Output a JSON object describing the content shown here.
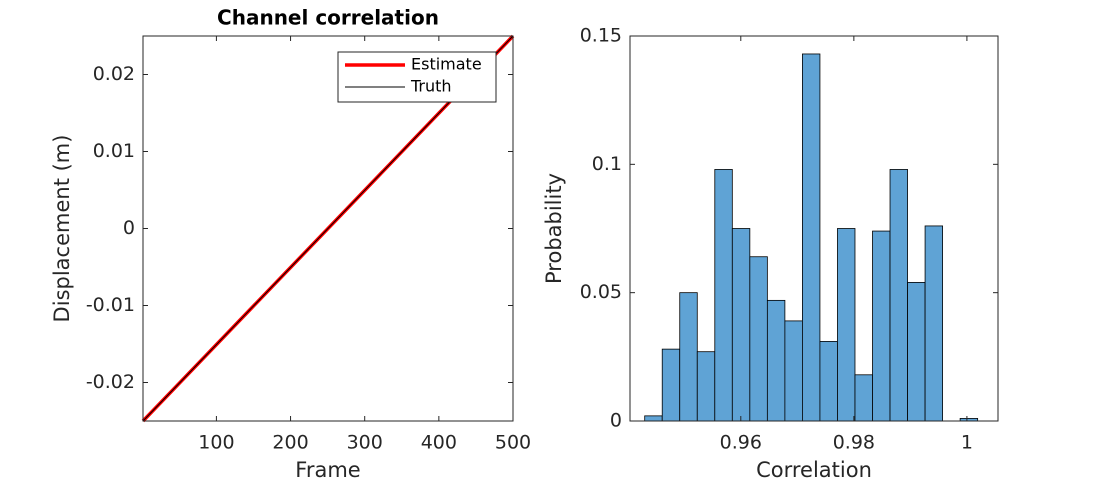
{
  "chart_data": [
    {
      "type": "line",
      "title": "Channel correlation",
      "xlabel": "Frame",
      "ylabel": "Displacement (m)",
      "x": [
        1,
        500
      ],
      "series": [
        {
          "name": "Estimate",
          "color": "#ff0000",
          "values": [
            -0.025,
            0.025
          ]
        },
        {
          "name": "Truth",
          "color": "#000000",
          "values": [
            -0.025,
            0.025
          ]
        }
      ],
      "xlim": [
        1,
        500
      ],
      "xticks": [
        100,
        200,
        300,
        400,
        500
      ],
      "ylim": [
        -0.025,
        0.025
      ],
      "yticks": [
        -0.02,
        -0.01,
        0,
        0.01,
        0.02
      ],
      "legend": "northeast"
    },
    {
      "type": "histogram",
      "xlabel": "Correlation",
      "ylabel": "Probability",
      "color": "#5fa3d5",
      "bins": [
        0.943,
        0.9461,
        0.9492,
        0.9523,
        0.9554,
        0.9585,
        0.9616,
        0.9647,
        0.9678,
        0.9709,
        0.974,
        0.9771,
        0.9802,
        0.9833,
        0.9864,
        0.9895,
        0.9926,
        0.9957,
        0.9988,
        1.0019
      ],
      "values": [
        0.002,
        0.028,
        0.05,
        0.027,
        0.098,
        0.075,
        0.064,
        0.047,
        0.039,
        0.143,
        0.031,
        0.075,
        0.018,
        0.074,
        0.098,
        0.054,
        0.076,
        0,
        0.001
      ],
      "xlim": [
        0.9404,
        1.0055
      ],
      "xticks": [
        0.96,
        0.98,
        1
      ],
      "ylim": [
        0,
        0.15
      ],
      "yticks": [
        0,
        0.05,
        0.1,
        0.15
      ]
    }
  ]
}
